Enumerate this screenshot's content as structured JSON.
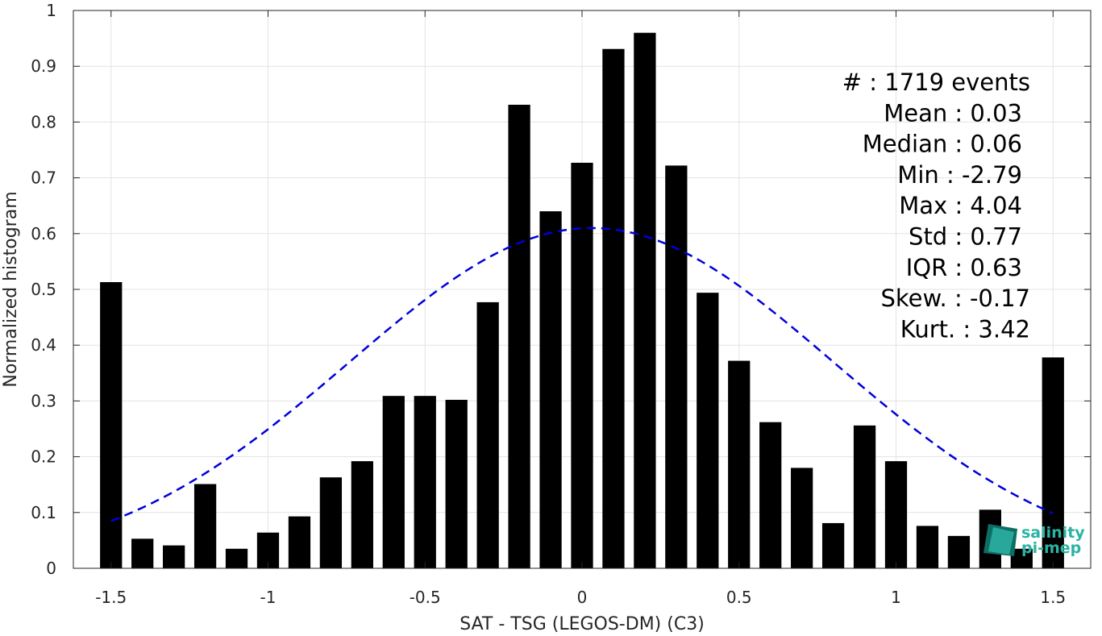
{
  "chart_data": {
    "type": "bar",
    "xlabel": "SAT - TSG (LEGOS-DM) (C3)",
    "ylabel": "Normalized histogram",
    "xlim": [
      -1.62,
      1.62
    ],
    "ylim": [
      0,
      1
    ],
    "xticks": [
      -1.5,
      -1,
      -0.5,
      0,
      0.5,
      1,
      1.5
    ],
    "xtick_labels": [
      "-1.5",
      "-1",
      "-0.5",
      "0",
      "0.5",
      "1",
      "1.5"
    ],
    "yticks": [
      0,
      0.1,
      0.2,
      0.3,
      0.4,
      0.5,
      0.6,
      0.7,
      0.8,
      0.9,
      1
    ],
    "ytick_labels": [
      "0",
      "0.1",
      "0.2",
      "0.3",
      "0.4",
      "0.5",
      "0.6",
      "0.7",
      "0.8",
      "0.9",
      "1"
    ],
    "grid": true,
    "bar_color": "#000000",
    "bar_width": 0.07,
    "x": [
      -1.5,
      -1.4,
      -1.3,
      -1.2,
      -1.1,
      -1.0,
      -0.9,
      -0.8,
      -0.7,
      -0.6,
      -0.5,
      -0.4,
      -0.3,
      -0.2,
      -0.1,
      0.0,
      0.1,
      0.2,
      0.3,
      0.4,
      0.5,
      0.6,
      0.7,
      0.8,
      0.9,
      1.0,
      1.1,
      1.2,
      1.3,
      1.4,
      1.5
    ],
    "values": [
      0.513,
      0.053,
      0.041,
      0.151,
      0.035,
      0.064,
      0.093,
      0.163,
      0.192,
      0.309,
      0.309,
      0.302,
      0.477,
      0.831,
      0.64,
      0.727,
      0.931,
      0.96,
      0.722,
      0.494,
      0.372,
      0.262,
      0.18,
      0.081,
      0.256,
      0.192,
      0.076,
      0.058,
      0.105,
      0.035,
      0.378
    ],
    "fit_curve": {
      "type": "normal",
      "mean": 0.03,
      "std": 0.77,
      "peak": 0.61,
      "x_range": [
        -1.5,
        1.5
      ],
      "color": "#0000dd",
      "style": "dashed"
    }
  },
  "stats": [
    {
      "label": "#  : 1719 events"
    },
    {
      "label": "Mean : 0.03"
    },
    {
      "label": "Median : 0.06"
    },
    {
      "label": "Min : -2.79"
    },
    {
      "label": "Max : 4.04"
    },
    {
      "label": "Std : 0.77"
    },
    {
      "label": "IQR : 0.63"
    },
    {
      "label": "Skew. : -0.17"
    },
    {
      "label": "Kurt. : 3.42"
    }
  ],
  "logo": {
    "line1": "salinity",
    "line2": "pi-mep",
    "colors": [
      "#1a9e8f",
      "#2bb3a3",
      "#0e6e63"
    ]
  }
}
